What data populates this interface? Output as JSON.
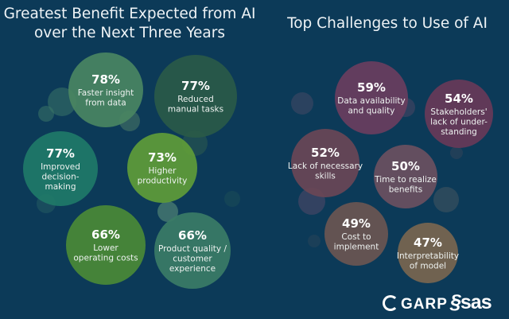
{
  "chart_data": [
    {
      "type": "bubble",
      "title": "Greatest Benefit Expected from AI over the Next Three Years",
      "title_lines": [
        "Greatest Benefit Expected from AI",
        "over the Next Three Years"
      ],
      "unit": "%",
      "items": [
        {
          "value": 78,
          "label": "78%",
          "lines": [
            "Faster insight",
            "from data"
          ],
          "color": "#4a8562"
        },
        {
          "value": 77,
          "label": "77%",
          "lines": [
            "Reduced",
            "manual tasks"
          ],
          "color": "#2a5a48"
        },
        {
          "value": 77,
          "label": "77%",
          "lines": [
            "Improved",
            "decision-",
            "making"
          ],
          "color": "#1f7a68"
        },
        {
          "value": 73,
          "label": "73%",
          "lines": [
            "Higher",
            "productivity"
          ],
          "color": "#5f9c38"
        },
        {
          "value": 66,
          "label": "66%",
          "lines": [
            "Lower",
            "operating costs"
          ],
          "color": "#4b8a36"
        },
        {
          "value": 66,
          "label": "66%",
          "lines": [
            "Product quality /",
            "customer",
            "experience"
          ],
          "color": "#3b7c66"
        }
      ]
    },
    {
      "type": "bubble",
      "title": "Top Challenges to Use of AI",
      "title_lines": [
        "Top Challenges to Use of AI"
      ],
      "unit": "%",
      "items": [
        {
          "value": 59,
          "label": "59%",
          "lines": [
            "Data availability",
            "and quality"
          ],
          "color": "#6a3e5e"
        },
        {
          "value": 54,
          "label": "54%",
          "lines": [
            "Stakeholders'",
            "lack of under-",
            "standing"
          ],
          "color": "#683a58"
        },
        {
          "value": 52,
          "label": "52%",
          "lines": [
            "Lack of necessary",
            "skills"
          ],
          "color": "#6a4756"
        },
        {
          "value": 50,
          "label": "50%",
          "lines": [
            "Time to realize",
            "benefits"
          ],
          "color": "#6b5060"
        },
        {
          "value": 49,
          "label": "49%",
          "lines": [
            "Cost to",
            "implement"
          ],
          "color": "#6b5651"
        },
        {
          "value": 47,
          "label": "47%",
          "lines": [
            "Interpretability",
            "of model"
          ],
          "color": "#7a664f"
        }
      ]
    }
  ],
  "logos": {
    "garp": "GARP",
    "sas": "sas"
  },
  "colors": {
    "background": "#0c3a58"
  }
}
